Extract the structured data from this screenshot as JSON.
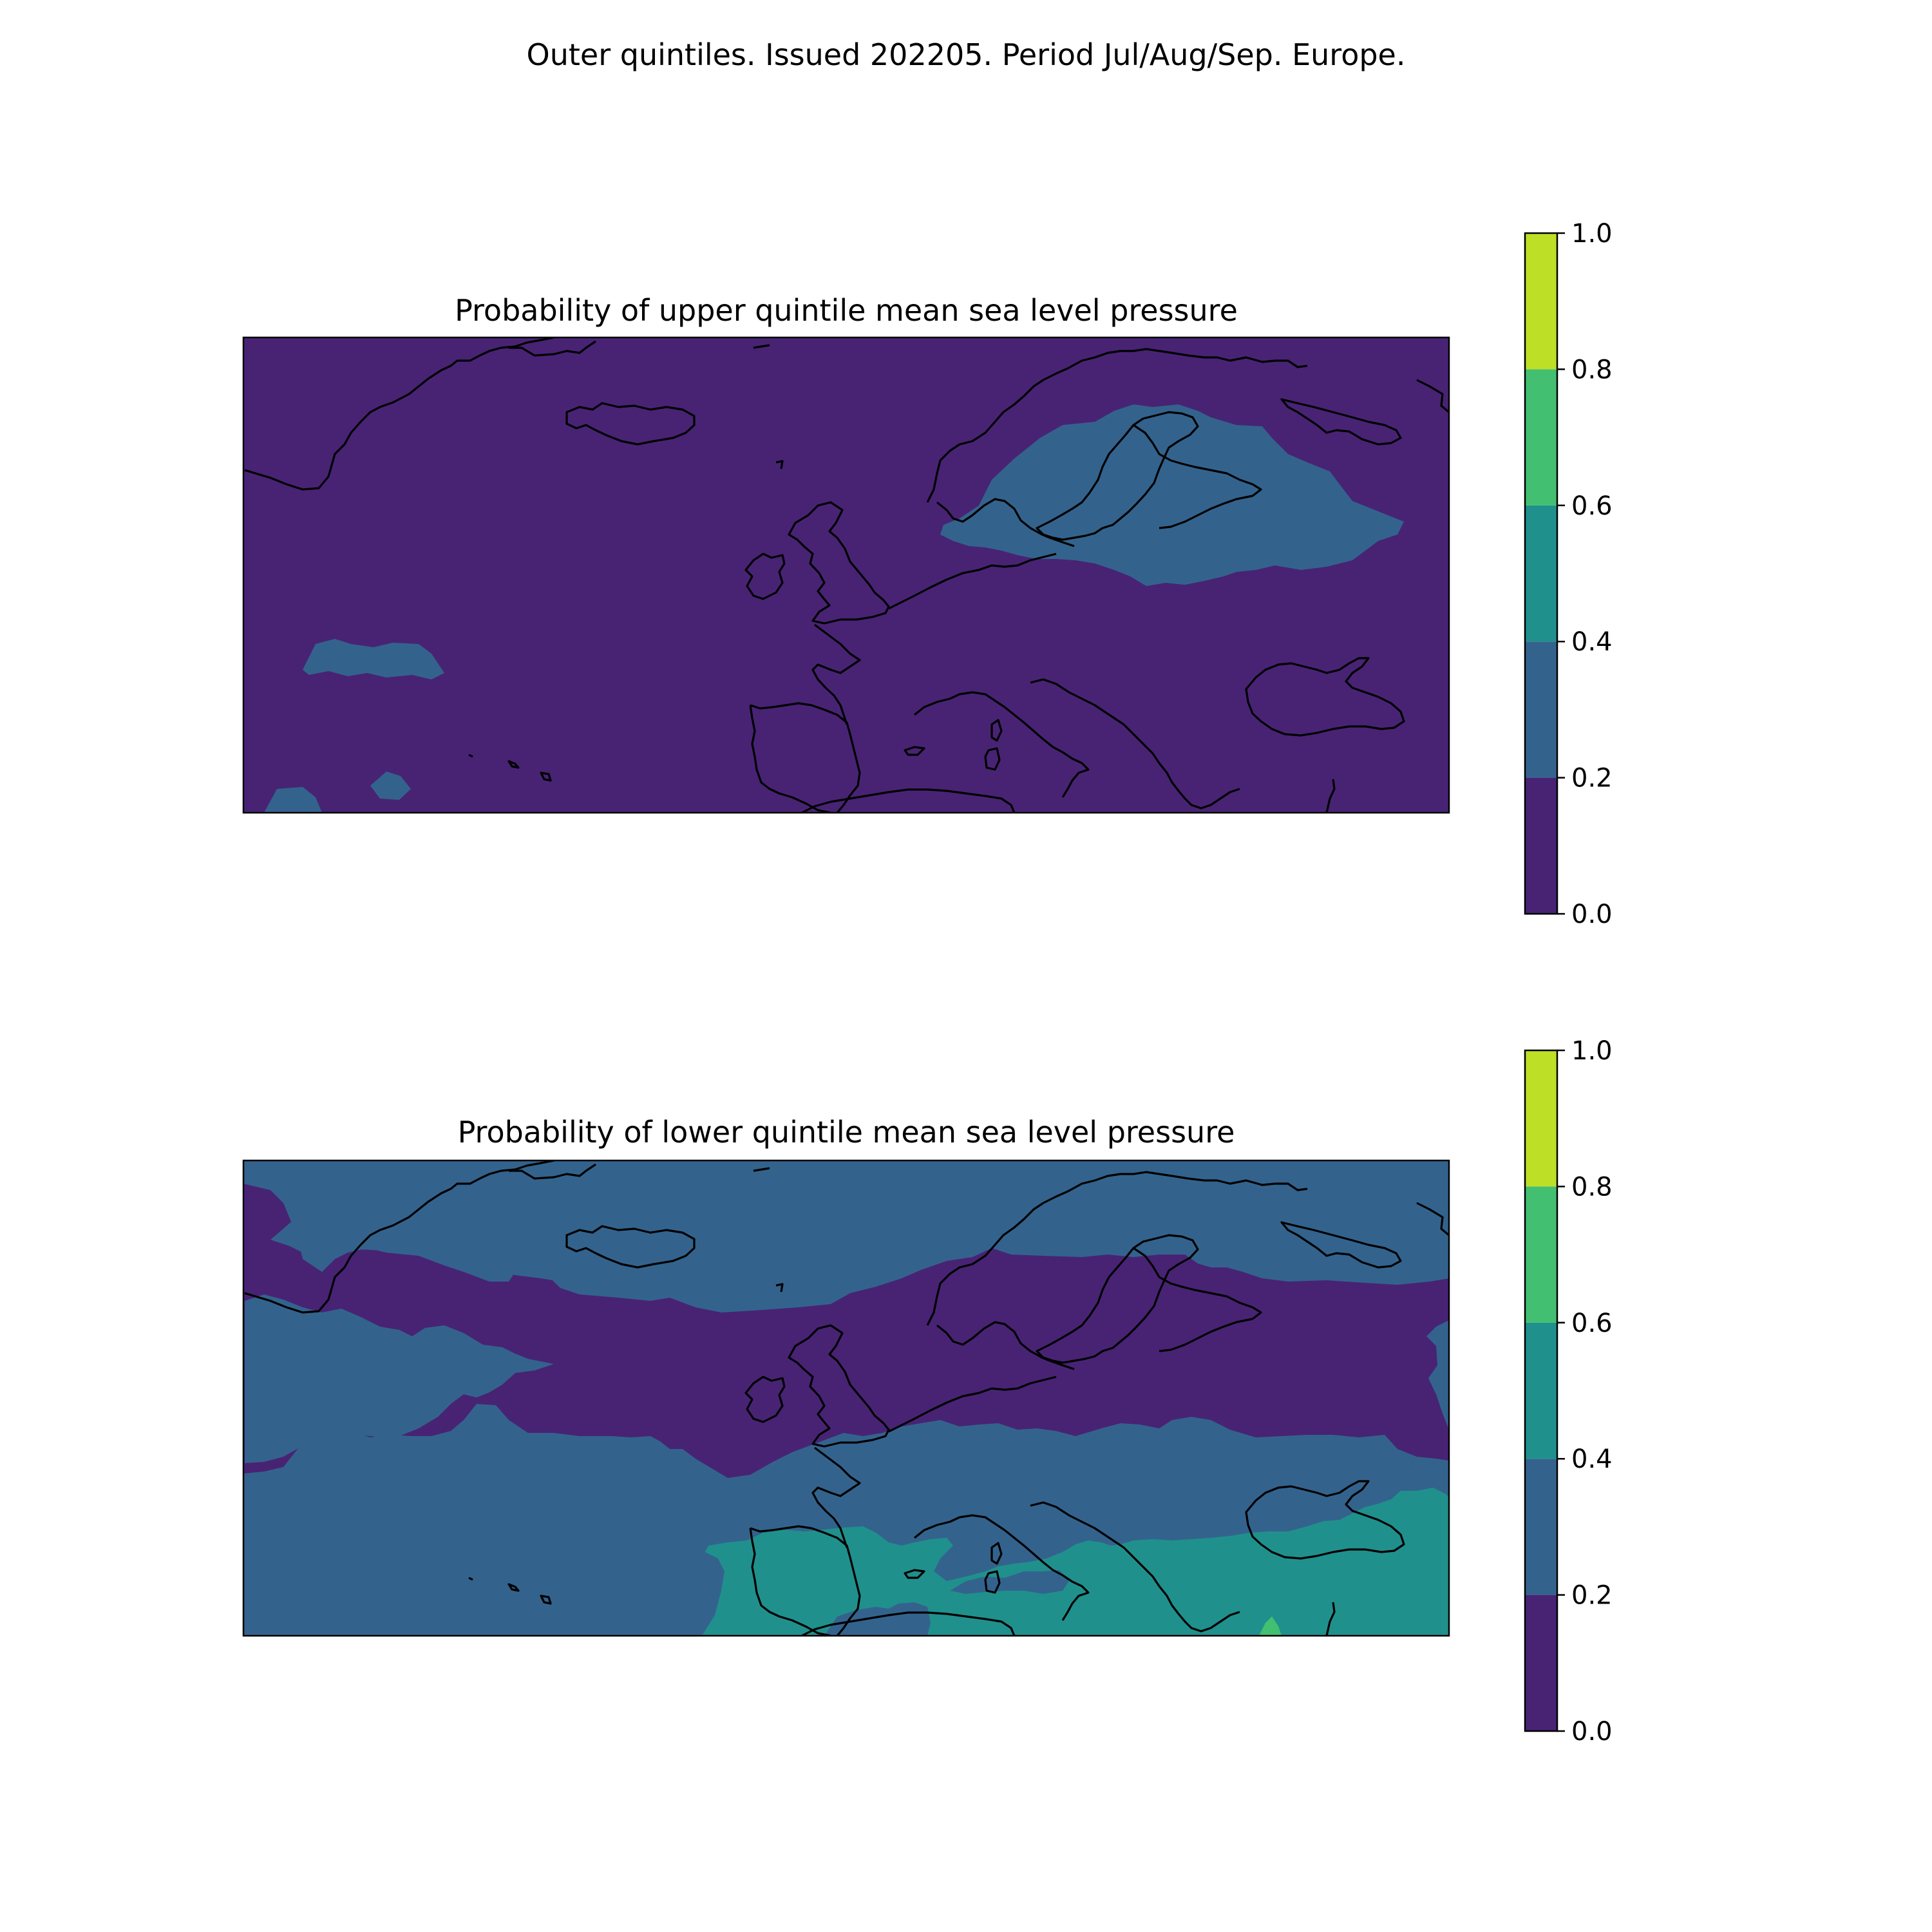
{
  "figure": {
    "suptitle": "Outer quintiles. Issued 202205. Period Jul/Aug/Sep. Europe."
  },
  "colorbar": {
    "levels": [
      0.0,
      0.2,
      0.4,
      0.6,
      0.8,
      1.0
    ],
    "tick_labels": [
      "0.0",
      "0.2",
      "0.4",
      "0.6",
      "0.8",
      "1.0"
    ],
    "colors": [
      "#482374",
      "#33638d",
      "#20908d",
      "#43bf71",
      "#bddf26"
    ]
  },
  "chart_data": [
    {
      "type": "heatmap",
      "title": "Probability of upper quintile mean sea level pressure",
      "region": "Europe",
      "colorbar_range": [
        0.0,
        1.0
      ],
      "background_level": "0.0-0.2",
      "regions": [
        {
          "area": "Scandinavia, Baltic and western Russia",
          "level": "0.2-0.4"
        },
        {
          "area": "Central North Atlantic (west of Azores)",
          "level": "0.2-0.4"
        },
        {
          "area": "South-west corner of Atlantic",
          "level": "0.2-0.4"
        }
      ]
    },
    {
      "type": "heatmap",
      "title": "Probability of lower quintile mean sea level pressure",
      "region": "Europe",
      "colorbar_range": [
        0.0,
        1.0
      ],
      "background_level": "0.2-0.4",
      "regions": [
        {
          "area": "Band from Greenland/North Atlantic across British Isles, Scandinavia to Russia",
          "level": "0.0-0.2"
        },
        {
          "area": "Iberia, Mediterranean, Balkans, Turkey, Black Sea",
          "level": "0.4-0.6"
        }
      ]
    }
  ]
}
